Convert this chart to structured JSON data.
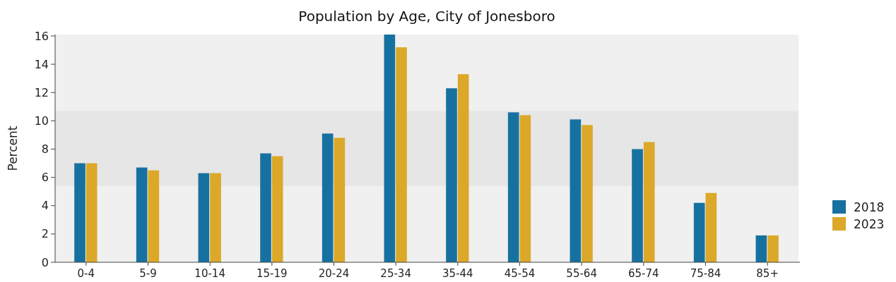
{
  "chart_data": {
    "type": "bar",
    "title": "Population by Age, City of Jonesboro",
    "ylabel": "Percent",
    "categories": [
      "0-4",
      "5-9",
      "10-14",
      "15-19",
      "20-24",
      "25-34",
      "35-44",
      "45-54",
      "55-64",
      "65-74",
      "75-84",
      "85+"
    ],
    "series": [
      {
        "name": "2018",
        "color": "#1771a0",
        "values": [
          7.0,
          6.7,
          6.3,
          7.7,
          9.1,
          16.1,
          12.3,
          10.6,
          10.1,
          8.0,
          4.2,
          1.9
        ]
      },
      {
        "name": "2023",
        "color": "#dca829",
        "values": [
          7.0,
          6.5,
          6.3,
          7.5,
          8.8,
          15.2,
          13.3,
          10.4,
          9.7,
          8.5,
          4.9,
          1.9
        ]
      }
    ],
    "ylim": [
      0,
      16.1
    ],
    "yticks": [
      0,
      2,
      4,
      6,
      8,
      10,
      12,
      14,
      16
    ],
    "bands": [
      {
        "axis": "y",
        "from": 5.4,
        "to": 10.7,
        "color": "#e6e6e6"
      }
    ],
    "legend": "right"
  }
}
